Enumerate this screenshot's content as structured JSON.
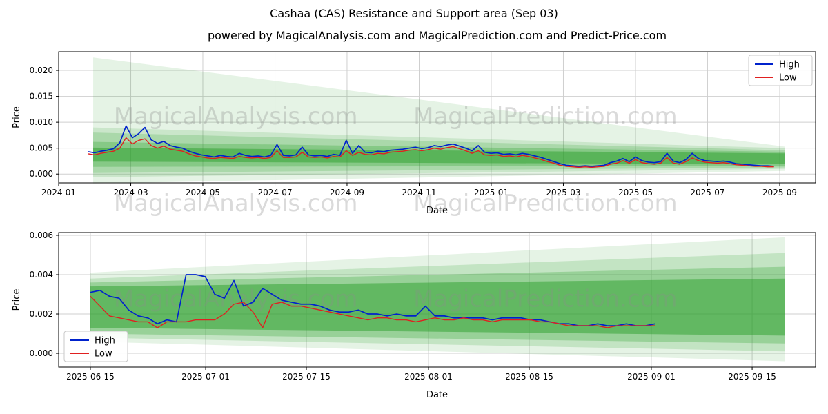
{
  "title": "Cashaa (CAS) Resistance and Support area (Sep 03)",
  "subtitle": "powered by MagicalAnalysis.com and MagicalPrediction.com and Predict-Price.com",
  "watermarks": {
    "left": "MagicalAnalysis.com",
    "right": "MagicalPrediction.com"
  },
  "colors": {
    "high": "#0022cc",
    "low": "#e02020",
    "band": "#2ca02c",
    "grid": "#cfcfcf",
    "axis": "#000000",
    "watermark": "rgba(140,140,140,0.32)",
    "legend_border": "#c8c8c8"
  },
  "chart_data": [
    {
      "type": "line",
      "title": "",
      "xlabel": "Date",
      "ylabel": "Price",
      "grid": true,
      "ylim": [
        -0.0017,
        0.0236
      ],
      "y_ticks": [
        {
          "value": 0.0,
          "label": "0.000"
        },
        {
          "value": 0.005,
          "label": "0.005"
        },
        {
          "value": 0.01,
          "label": "0.010"
        },
        {
          "value": 0.015,
          "label": "0.015"
        },
        {
          "value": 0.02,
          "label": "0.020"
        }
      ],
      "x_ticks": [
        {
          "pos": 0.0,
          "label": "2024-01"
        },
        {
          "pos": 0.0953,
          "label": "2024-03"
        },
        {
          "pos": 0.1905,
          "label": "2024-05"
        },
        {
          "pos": 0.2858,
          "label": "2024-07"
        },
        {
          "pos": 0.381,
          "label": "2024-09"
        },
        {
          "pos": 0.4763,
          "label": "2024-11"
        },
        {
          "pos": 0.5715,
          "label": "2025-01"
        },
        {
          "pos": 0.6668,
          "label": "2025-03"
        },
        {
          "pos": 0.7621,
          "label": "2025-05"
        },
        {
          "pos": 0.8573,
          "label": "2025-07"
        },
        {
          "pos": 0.9526,
          "label": "2025-09"
        }
      ],
      "legend": {
        "position": "top-right",
        "entries": [
          {
            "label": "High",
            "color_key": "high"
          },
          {
            "label": "Low",
            "color_key": "low"
          }
        ]
      },
      "x_start": 0.0392,
      "x_end": 0.945,
      "series": [
        {
          "name": "High",
          "color_key": "high",
          "values": [
            0.0043,
            0.0041,
            0.0044,
            0.0046,
            0.0049,
            0.006,
            0.0093,
            0.007,
            0.0078,
            0.009,
            0.0066,
            0.0059,
            0.0063,
            0.0055,
            0.0052,
            0.005,
            0.0044,
            0.004,
            0.0037,
            0.0035,
            0.0033,
            0.0036,
            0.0034,
            0.0033,
            0.004,
            0.0036,
            0.0034,
            0.0035,
            0.0033,
            0.0036,
            0.0057,
            0.0036,
            0.0035,
            0.0037,
            0.0052,
            0.0037,
            0.0035,
            0.0036,
            0.0034,
            0.0038,
            0.0036,
            0.0065,
            0.004,
            0.0055,
            0.0042,
            0.0041,
            0.0044,
            0.0043,
            0.0046,
            0.0047,
            0.0048,
            0.005,
            0.0052,
            0.0049,
            0.0051,
            0.0055,
            0.0053,
            0.0056,
            0.0058,
            0.0054,
            0.005,
            0.0045,
            0.0055,
            0.0042,
            0.004,
            0.0041,
            0.0038,
            0.0039,
            0.0037,
            0.004,
            0.0038,
            0.0035,
            0.0032,
            0.0028,
            0.0024,
            0.002,
            0.0017,
            0.0016,
            0.0015,
            0.0016,
            0.0015,
            0.0016,
            0.0017,
            0.0022,
            0.0025,
            0.003,
            0.0024,
            0.0033,
            0.0026,
            0.0023,
            0.0022,
            0.0024,
            0.004,
            0.0025,
            0.0022,
            0.0028,
            0.004,
            0.003,
            0.0026,
            0.0025,
            0.0024,
            0.0025,
            0.0023,
            0.002,
            0.0019,
            0.0018,
            0.0017,
            0.0016,
            0.0016,
            0.0015
          ]
        },
        {
          "name": "Low",
          "color_key": "low",
          "values": [
            0.0039,
            0.0037,
            0.004,
            0.0042,
            0.0044,
            0.005,
            0.007,
            0.0058,
            0.0065,
            0.0068,
            0.0055,
            0.005,
            0.0054,
            0.0048,
            0.0046,
            0.0044,
            0.0039,
            0.0035,
            0.0033,
            0.0031,
            0.003,
            0.0032,
            0.0031,
            0.003,
            0.0034,
            0.0032,
            0.0031,
            0.0032,
            0.003,
            0.0032,
            0.0045,
            0.0032,
            0.0032,
            0.0033,
            0.0042,
            0.0033,
            0.0032,
            0.0033,
            0.0031,
            0.0034,
            0.0033,
            0.0045,
            0.0036,
            0.0042,
            0.0038,
            0.0037,
            0.004,
            0.0039,
            0.0042,
            0.0043,
            0.0044,
            0.0046,
            0.0047,
            0.0045,
            0.0047,
            0.005,
            0.0048,
            0.0051,
            0.0053,
            0.0049,
            0.0045,
            0.004,
            0.0045,
            0.0037,
            0.0036,
            0.0037,
            0.0034,
            0.0035,
            0.0033,
            0.0036,
            0.0034,
            0.0031,
            0.0028,
            0.0024,
            0.0021,
            0.0017,
            0.0015,
            0.0014,
            0.0013,
            0.0014,
            0.0013,
            0.0014,
            0.0015,
            0.0019,
            0.0021,
            0.0026,
            0.0021,
            0.0028,
            0.0022,
            0.002,
            0.0019,
            0.0021,
            0.0032,
            0.0021,
            0.0019,
            0.0024,
            0.0031,
            0.0026,
            0.0023,
            0.0022,
            0.0021,
            0.0022,
            0.002,
            0.0018,
            0.0017,
            0.0016,
            0.0015,
            0.0015,
            0.0014,
            0.0014
          ]
        }
      ],
      "bands": [
        {
          "x0": 0.0456,
          "top0": 0.0225,
          "bot0": -0.0018,
          "x1": 0.959,
          "top1": 0.0053,
          "bot1": 0.0006,
          "opacity": 0.12
        },
        {
          "x0": 0.0456,
          "top0": 0.009,
          "bot0": -0.0006,
          "x1": 0.959,
          "top1": 0.005,
          "bot1": 0.001,
          "opacity": 0.15
        },
        {
          "x0": 0.0456,
          "top0": 0.008,
          "bot0": 0.0002,
          "x1": 0.959,
          "top1": 0.0046,
          "bot1": 0.0013,
          "opacity": 0.2
        },
        {
          "x0": 0.0456,
          "top0": 0.0062,
          "bot0": 0.0014,
          "x1": 0.959,
          "top1": 0.0043,
          "bot1": 0.0016,
          "opacity": 0.28
        },
        {
          "x0": 0.0456,
          "top0": 0.0051,
          "bot0": 0.0024,
          "x1": 0.959,
          "top1": 0.004,
          "bot1": 0.0019,
          "opacity": 0.5
        }
      ]
    },
    {
      "type": "line",
      "title": "",
      "xlabel": "Date",
      "ylabel": "Price",
      "grid": true,
      "ylim": [
        -0.0007,
        0.00614
      ],
      "y_ticks": [
        {
          "value": 0.0,
          "label": "0.000"
        },
        {
          "value": 0.002,
          "label": "0.002"
        },
        {
          "value": 0.004,
          "label": "0.004"
        },
        {
          "value": 0.006,
          "label": "0.006"
        }
      ],
      "x_ticks": [
        {
          "pos": 0.0419,
          "label": "2025-06-15"
        },
        {
          "pos": 0.1942,
          "label": "2025-07-01"
        },
        {
          "pos": 0.3273,
          "label": "2025-07-15"
        },
        {
          "pos": 0.4886,
          "label": "2025-08-01"
        },
        {
          "pos": 0.6217,
          "label": "2025-08-15"
        },
        {
          "pos": 0.783,
          "label": "2025-09-01"
        },
        {
          "pos": 0.9162,
          "label": "2025-09-15"
        }
      ],
      "legend": {
        "position": "bottom-left",
        "entries": [
          {
            "label": "High",
            "color_key": "high"
          },
          {
            "label": "Low",
            "color_key": "low"
          }
        ]
      },
      "x_start": 0.0419,
      "x_end": 0.788,
      "series": [
        {
          "name": "High",
          "color_key": "high",
          "values": [
            0.0031,
            0.0032,
            0.0029,
            0.0028,
            0.0022,
            0.0019,
            0.0018,
            0.0015,
            0.0017,
            0.0016,
            0.004,
            0.004,
            0.0039,
            0.003,
            0.0028,
            0.0037,
            0.0024,
            0.0026,
            0.0033,
            0.003,
            0.0027,
            0.0026,
            0.0025,
            0.0025,
            0.0024,
            0.0022,
            0.0021,
            0.0021,
            0.0022,
            0.002,
            0.002,
            0.0019,
            0.002,
            0.0019,
            0.0019,
            0.0024,
            0.0019,
            0.0019,
            0.0018,
            0.0018,
            0.0018,
            0.0018,
            0.0017,
            0.0018,
            0.0018,
            0.0018,
            0.0017,
            0.0017,
            0.0016,
            0.0015,
            0.0015,
            0.0014,
            0.0014,
            0.0015,
            0.0014,
            0.0014,
            0.0015,
            0.0014,
            0.0014,
            0.0015
          ]
        },
        {
          "name": "Low",
          "color_key": "low",
          "values": [
            0.0029,
            0.0024,
            0.0019,
            0.0018,
            0.0017,
            0.0016,
            0.0016,
            0.0013,
            0.0016,
            0.0016,
            0.0016,
            0.0017,
            0.0017,
            0.0017,
            0.002,
            0.0025,
            0.0026,
            0.0021,
            0.0013,
            0.0025,
            0.0026,
            0.0024,
            0.0024,
            0.0023,
            0.0022,
            0.0021,
            0.002,
            0.0019,
            0.0018,
            0.0017,
            0.0018,
            0.0018,
            0.0017,
            0.0017,
            0.0016,
            0.0017,
            0.0018,
            0.0017,
            0.0017,
            0.0018,
            0.0017,
            0.0017,
            0.0016,
            0.0017,
            0.0017,
            0.0017,
            0.0017,
            0.0016,
            0.0016,
            0.0015,
            0.0014,
            0.0014,
            0.0014,
            0.0014,
            0.0013,
            0.0014,
            0.0014,
            0.0014,
            0.0014,
            0.0014
          ]
        }
      ],
      "bands": [
        {
          "x0": 0.0419,
          "top0": 0.0041,
          "bot0": 0.0006,
          "x1": 0.959,
          "top1": 0.0059,
          "bot1": -0.0004,
          "opacity": 0.12
        },
        {
          "x0": 0.0419,
          "top0": 0.0038,
          "bot0": 0.0008,
          "x1": 0.959,
          "top1": 0.0051,
          "bot1": 0.0001,
          "opacity": 0.18
        },
        {
          "x0": 0.0419,
          "top0": 0.0036,
          "bot0": 0.001,
          "x1": 0.959,
          "top1": 0.0044,
          "bot1": 0.0005,
          "opacity": 0.28
        },
        {
          "x0": 0.0419,
          "top0": 0.0034,
          "bot0": 0.0013,
          "x1": 0.959,
          "top1": 0.0038,
          "bot1": 0.0009,
          "opacity": 0.5
        }
      ]
    }
  ]
}
